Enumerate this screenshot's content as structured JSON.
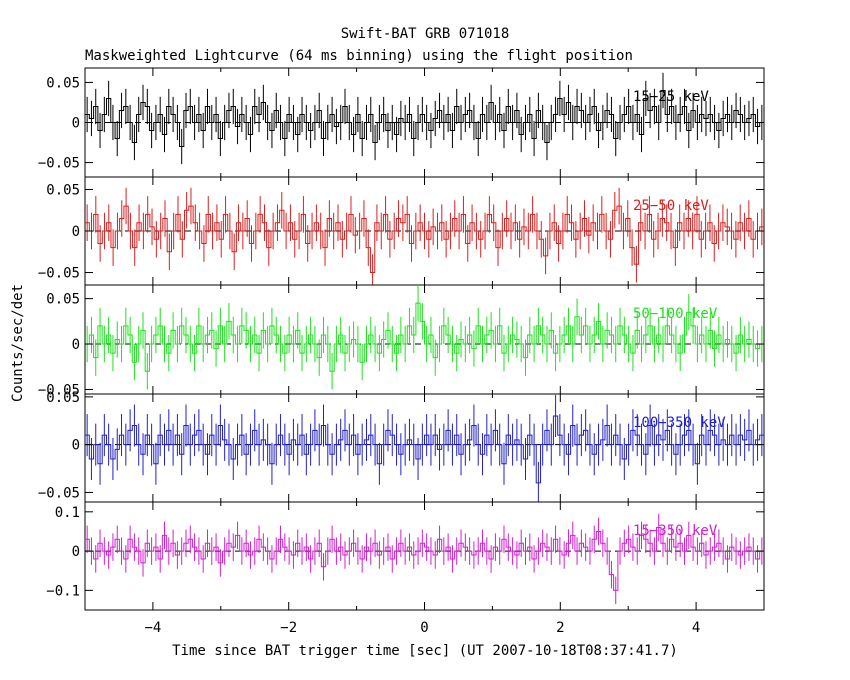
{
  "title": "Swift-BAT GRB 071018",
  "subtitle": "Maskweighted Lightcurve (64 ms binning) using the flight position",
  "chart_data": {
    "type": "line",
    "title": "Swift-BAT GRB 071018",
    "subtitle": "Maskweighted Lightcurve (64 ms binning) using the flight position",
    "xlabel": "Time since BAT trigger time [sec] (UT 2007-10-18T08:37:41.7)",
    "ylabel": "Counts/sec/det",
    "xlim": [
      -5,
      5
    ],
    "xticks": [
      -4,
      -2,
      0,
      2,
      4
    ],
    "xtick_labels": [
      "−4",
      "−2",
      "0",
      "2",
      "4"
    ],
    "bin_width": 0.064,
    "note": "Approximate per-bin values read from the plotted step curves; error bars approximately constant per panel.",
    "panels": [
      {
        "name": "15-25 keV",
        "label": "15−25 keV",
        "color": "#000000",
        "ylim": [
          -0.068,
          0.068
        ],
        "yticks": [
          -0.05,
          0,
          0.05
        ],
        "ytick_labels": [
          "−0.05",
          "0",
          "0.05"
        ],
        "error": 0.022,
        "values": [
          0.01,
          0.005,
          0.02,
          -0.01,
          0.01,
          0.03,
          0.0,
          -0.02,
          0.015,
          0.02,
          0.0,
          -0.025,
          0.01,
          0.025,
          0.02,
          -0.01,
          0.0,
          0.01,
          -0.015,
          0.02,
          0.01,
          0.0,
          -0.03,
          0.015,
          0.02,
          0.0,
          0.01,
          -0.01,
          0.02,
          0.0,
          0.01,
          -0.02,
          0.0,
          0.015,
          0.02,
          -0.005,
          0.01,
          0.0,
          -0.015,
          0.02,
          0.01,
          0.025,
          0.0,
          -0.01,
          0.015,
          0.0,
          -0.02,
          0.01,
          0.0,
          -0.015,
          0.01,
          0.0,
          -0.01,
          0.0,
          0.015,
          -0.02,
          0.0,
          0.01,
          -0.005,
          0.0,
          0.02,
          0.0,
          -0.015,
          0.01,
          -0.02,
          0.0,
          0.01,
          -0.025,
          0.0,
          0.01,
          -0.01,
          0.0,
          -0.015,
          0.005,
          0.0,
          0.01,
          -0.02,
          0.0,
          0.01,
          0.0,
          -0.01,
          0.005,
          0.015,
          0.0,
          0.01,
          -0.01,
          0.02,
          0.0,
          0.01,
          0.015,
          0.0,
          -0.02,
          0.01,
          0.0,
          0.025,
          0.0,
          0.01,
          -0.01,
          0.02,
          0.0,
          0.015,
          -0.015,
          0.0,
          0.01,
          -0.02,
          0.015,
          0.0,
          -0.025,
          0.0,
          0.01,
          0.03,
          0.01,
          0.025,
          0.0,
          0.02,
          0.015,
          0.0,
          0.01,
          0.02,
          -0.01,
          0.0,
          0.015,
          0.01,
          -0.02,
          0.0,
          0.01,
          0.02,
          0.0,
          0.01,
          -0.015,
          0.03,
          0.015,
          0.02,
          0.0,
          0.04,
          0.01,
          0.02,
          0.0,
          0.01,
          0.02,
          -0.01,
          0.015,
          0.0,
          0.01,
          0.005,
          0.01,
          0.0,
          -0.01,
          0.005,
          0.01,
          0.0,
          0.015,
          0.01,
          0.0,
          0.005,
          0.01,
          -0.005,
          0.0
        ]
      },
      {
        "name": "25-50 keV",
        "label": "25−50 keV",
        "color": "#d62020",
        "ylim": [
          -0.065,
          0.065
        ],
        "yticks": [
          -0.05,
          0,
          0.05
        ],
        "ytick_labels": [
          "−0.05",
          "0",
          "0.05"
        ],
        "error": 0.022,
        "values": [
          0.01,
          0.0,
          0.02,
          -0.015,
          0.0,
          0.01,
          -0.02,
          0.0,
          0.015,
          0.03,
          0.0,
          -0.02,
          0.01,
          0.0,
          0.02,
          0.005,
          -0.01,
          0.0,
          0.015,
          -0.025,
          0.0,
          0.02,
          -0.01,
          0.025,
          0.03,
          0.01,
          0.0,
          -0.015,
          0.02,
          0.0,
          0.01,
          -0.01,
          0.02,
          0.0,
          -0.025,
          0.01,
          0.0,
          0.015,
          -0.015,
          0.0,
          0.02,
          0.01,
          -0.02,
          0.0,
          0.01,
          0.025,
          0.0,
          0.01,
          -0.01,
          0.0,
          0.02,
          -0.015,
          0.0,
          0.01,
          0.0,
          -0.02,
          0.015,
          0.0,
          0.01,
          -0.01,
          0.0,
          0.02,
          -0.005,
          0.0,
          0.015,
          -0.02,
          -0.05,
          0.01,
          0.0,
          0.02,
          -0.01,
          0.0,
          0.015,
          0.01,
          0.02,
          -0.015,
          0.0,
          0.01,
          0.0,
          -0.01,
          0.005,
          0.0,
          0.01,
          -0.01,
          0.0,
          0.015,
          0.0,
          0.02,
          -0.015,
          0.01,
          0.0,
          -0.01,
          0.0,
          0.02,
          0.01,
          -0.02,
          0.0,
          0.015,
          0.0,
          0.01,
          -0.01,
          0.005,
          0.0,
          0.02,
          0.0,
          -0.01,
          -0.03,
          0.0,
          0.01,
          -0.015,
          0.0,
          0.02,
          0.01,
          -0.01,
          0.0,
          0.015,
          -0.005,
          0.01,
          0.0,
          0.02,
          0.0,
          -0.01,
          0.025,
          0.03,
          0.0,
          0.015,
          -0.02,
          -0.04,
          0.01,
          0.0,
          0.02,
          -0.01,
          0.0,
          0.015,
          0.01,
          0.0,
          -0.02,
          0.01,
          0.0,
          0.015,
          0.0,
          0.02,
          -0.01,
          0.0,
          0.01,
          -0.015,
          0.0,
          0.01,
          0.005,
          0.0,
          -0.01,
          0.01,
          0.0,
          0.015,
          -0.01,
          0.0,
          0.005
        ]
      },
      {
        "name": "50-100 keV",
        "label": "50−100 keV",
        "color": "#20e020",
        "ylim": [
          -0.055,
          0.065
        ],
        "yticks": [
          -0.05,
          0,
          0.05
        ],
        "ytick_labels": [
          "−0.05",
          "0",
          "0.05"
        ],
        "error": 0.02,
        "values": [
          0.0,
          0.01,
          -0.015,
          0.02,
          0.0,
          0.01,
          -0.01,
          0.005,
          0.0,
          0.02,
          0.01,
          -0.02,
          0.0,
          0.015,
          -0.03,
          0.0,
          0.01,
          0.02,
          0.0,
          -0.01,
          0.015,
          0.0,
          0.02,
          0.01,
          0.0,
          -0.01,
          0.02,
          0.0,
          0.01,
          0.015,
          -0.005,
          0.02,
          0.0,
          0.025,
          0.01,
          0.0,
          0.02,
          0.015,
          0.0,
          0.01,
          -0.01,
          0.015,
          0.0,
          0.02,
          0.01,
          0.0,
          -0.01,
          0.01,
          0.0,
          0.015,
          -0.01,
          0.0,
          0.01,
          0.0,
          -0.015,
          0.01,
          0.0,
          -0.03,
          0.0,
          0.01,
          -0.01,
          0.0,
          0.005,
          0.0,
          -0.02,
          0.0,
          0.01,
          0.0,
          -0.01,
          0.005,
          0.015,
          0.0,
          -0.01,
          0.01,
          0.0,
          0.02,
          0.01,
          0.045,
          0.025,
          0.0,
          0.01,
          -0.015,
          0.0,
          0.02,
          0.01,
          0.0,
          -0.01,
          0.005,
          0.0,
          0.01,
          -0.005,
          0.02,
          0.0,
          0.01,
          0.015,
          0.0,
          0.02,
          -0.01,
          0.0,
          0.01,
          0.005,
          0.0,
          -0.015,
          0.01,
          0.0,
          0.02,
          0.01,
          0.0,
          0.015,
          -0.01,
          0.0,
          0.01,
          0.02,
          0.0,
          0.03,
          0.01,
          0.02,
          0.0,
          0.01,
          0.025,
          0.0,
          0.015,
          0.01,
          0.0,
          0.02,
          0.01,
          0.0,
          -0.01,
          0.015,
          0.0,
          0.01,
          0.02,
          0.0,
          0.01,
          0.0,
          0.02,
          0.01,
          0.0,
          -0.01,
          0.01,
          0.035,
          0.02,
          0.0,
          0.01,
          0.0,
          0.015,
          -0.005,
          0.01,
          0.0,
          0.005,
          0.0,
          -0.01,
          0.01,
          0.0,
          0.005,
          0.0,
          -0.005,
          0.0
        ]
      },
      {
        "name": "100-350 keV",
        "label": "100−350 keV",
        "color": "#2020c8",
        "ylim": [
          -0.06,
          0.053
        ],
        "yticks": [
          -0.05,
          0,
          0.05
        ],
        "ytick_labels": [
          "−0.05",
          "0",
          "0.05"
        ],
        "error": 0.022,
        "values": [
          0.01,
          -0.015,
          0.0,
          -0.02,
          0.01,
          0.0,
          -0.015,
          -0.005,
          0.01,
          0.0,
          0.015,
          0.02,
          0.0,
          -0.01,
          0.01,
          0.0,
          -0.02,
          0.01,
          0.0,
          0.015,
          0.0,
          0.01,
          -0.01,
          0.02,
          0.0,
          0.01,
          0.015,
          0.0,
          -0.01,
          0.01,
          0.0,
          0.02,
          0.005,
          0.0,
          -0.015,
          0.0,
          0.01,
          -0.01,
          0.0,
          0.015,
          0.0,
          0.005,
          0.0,
          -0.02,
          0.0,
          0.01,
          0.0,
          -0.01,
          0.005,
          0.0,
          0.01,
          -0.01,
          0.0,
          0.015,
          0.0,
          0.02,
          0.0,
          -0.01,
          0.0,
          0.005,
          0.015,
          0.0,
          0.01,
          -0.01,
          0.0,
          0.005,
          0.01,
          0.0,
          -0.02,
          0.0,
          0.015,
          0.01,
          0.0,
          -0.01,
          0.0,
          0.005,
          0.0,
          -0.015,
          0.0,
          0.01,
          0.0,
          0.01,
          -0.005,
          0.0,
          0.015,
          0.0,
          0.01,
          -0.01,
          0.0,
          0.005,
          0.02,
          0.0,
          -0.01,
          0.01,
          0.0,
          0.015,
          0.0,
          -0.02,
          0.01,
          0.0,
          0.005,
          0.0,
          -0.015,
          0.01,
          0.0,
          -0.04,
          0.0,
          0.015,
          0.0,
          0.03,
          0.01,
          0.0,
          -0.01,
          0.02,
          0.0,
          0.01,
          0.015,
          0.0,
          -0.01,
          0.0,
          0.005,
          0.02,
          0.0,
          0.01,
          0.0,
          -0.015,
          0.0,
          0.015,
          0.01,
          0.0,
          -0.01,
          0.02,
          0.0,
          0.01,
          0.005,
          0.015,
          0.0,
          -0.01,
          0.0,
          0.01,
          0.015,
          0.0,
          -0.02,
          0.01,
          0.0,
          0.015,
          0.01,
          0.0,
          0.005,
          0.0,
          0.01,
          0.0,
          0.01,
          0.005,
          0.015,
          0.0,
          0.005,
          0.01
        ]
      },
      {
        "name": "15-350 keV",
        "label": "15−350 keV",
        "color": "#d020d0",
        "ylim": [
          -0.15,
          0.125
        ],
        "yticks": [
          -0.1,
          0,
          0.1
        ],
        "ytick_labels": [
          "−0.1",
          "0",
          "0.1"
        ],
        "error": 0.035,
        "values": [
          0.03,
          0.0,
          -0.02,
          0.02,
          0.0,
          -0.01,
          0.01,
          0.03,
          0.0,
          -0.02,
          0.03,
          0.01,
          0.0,
          -0.03,
          0.02,
          0.0,
          0.01,
          -0.02,
          0.04,
          0.0,
          0.02,
          -0.01,
          0.0,
          0.02,
          0.03,
          0.01,
          0.0,
          -0.02,
          0.02,
          0.0,
          0.01,
          -0.03,
          0.0,
          0.02,
          0.01,
          0.04,
          0.0,
          0.02,
          -0.01,
          0.0,
          0.03,
          0.01,
          0.0,
          -0.02,
          0.0,
          0.03,
          0.01,
          0.0,
          -0.01,
          0.02,
          0.0,
          0.01,
          -0.02,
          0.0,
          0.02,
          -0.04,
          0.0,
          0.03,
          0.0,
          0.01,
          -0.01,
          0.0,
          0.02,
          0.0,
          -0.02,
          0.01,
          0.0,
          0.02,
          -0.01,
          0.0,
          0.01,
          -0.02,
          0.0,
          0.02,
          0.0,
          0.01,
          -0.01,
          0.0,
          0.02,
          0.01,
          0.0,
          -0.01,
          0.03,
          0.0,
          0.01,
          -0.02,
          0.0,
          0.02,
          0.01,
          0.0,
          -0.01,
          0.0,
          0.02,
          0.0,
          -0.02,
          0.01,
          0.0,
          0.03,
          0.01,
          0.0,
          -0.01,
          0.02,
          0.0,
          0.01,
          -0.02,
          0.0,
          0.02,
          0.01,
          0.0,
          0.03,
          0.0,
          -0.01,
          0.02,
          0.04,
          0.0,
          0.02,
          0.01,
          0.0,
          0.03,
          0.05,
          0.02,
          0.0,
          -0.06,
          -0.1,
          0.0,
          0.02,
          0.03,
          0.01,
          0.0,
          0.04,
          0.03,
          0.02,
          0.0,
          0.06,
          0.02,
          0.0,
          0.03,
          0.01,
          0.02,
          0.0,
          0.04,
          0.01,
          0.0,
          0.02,
          -0.01,
          0.0,
          0.01,
          0.02,
          0.0,
          -0.02,
          0.01,
          0.0,
          -0.01,
          0.0,
          0.01,
          0.0,
          -0.02,
          0.0
        ]
      }
    ]
  }
}
